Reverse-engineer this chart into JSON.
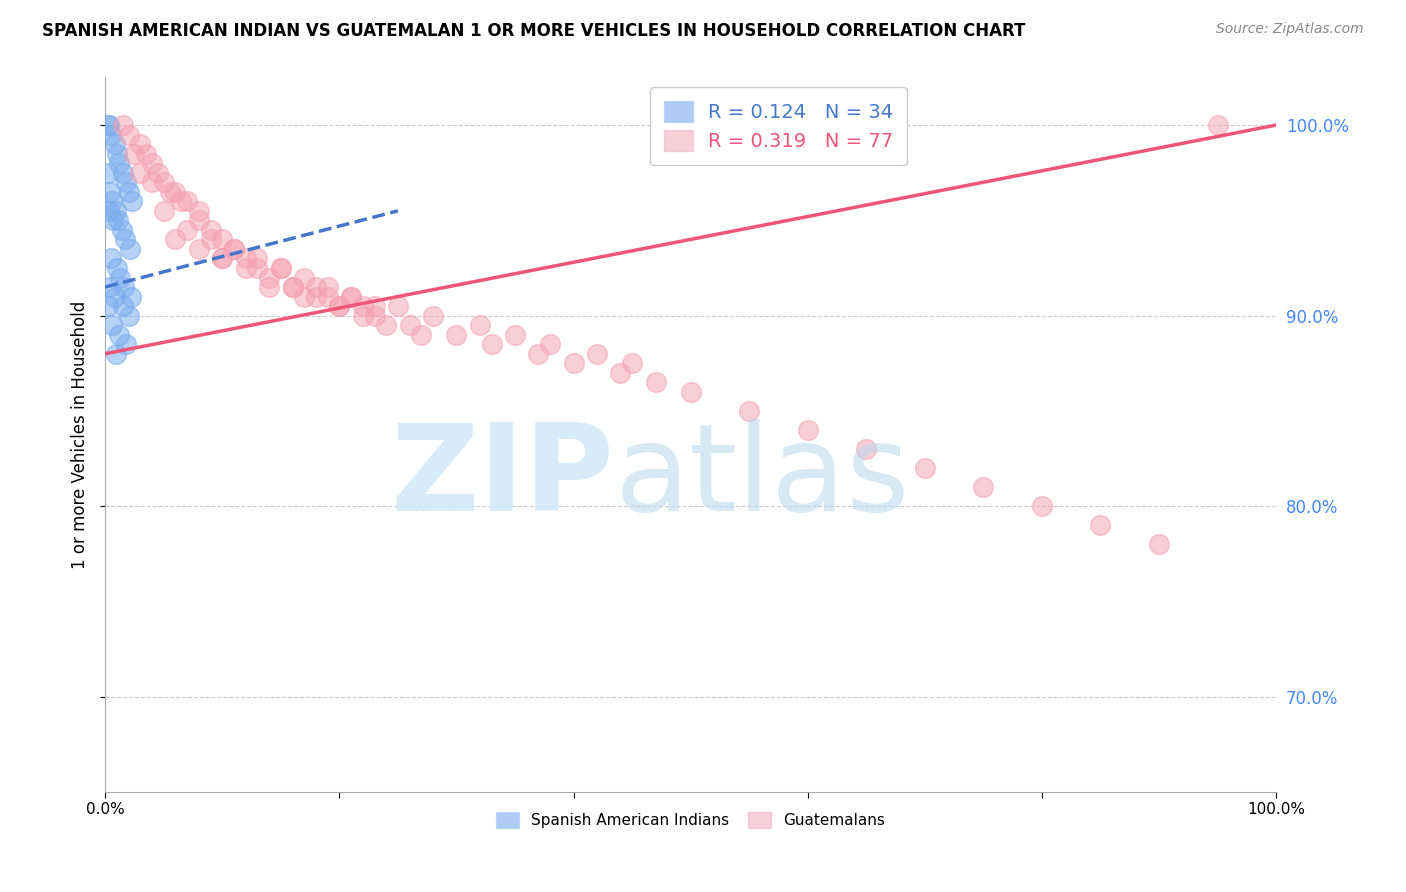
{
  "title": "SPANISH AMERICAN INDIAN VS GUATEMALAN 1 OR MORE VEHICLES IN HOUSEHOLD CORRELATION CHART",
  "source": "Source: ZipAtlas.com",
  "ylabel": "1 or more Vehicles in Household",
  "blue_R": 0.124,
  "blue_N": 34,
  "pink_R": 0.319,
  "pink_N": 77,
  "blue_scatter_x": [
    0.2,
    0.3,
    0.5,
    0.8,
    1.0,
    1.2,
    1.5,
    1.8,
    2.0,
    2.3,
    0.2,
    0.4,
    0.6,
    0.9,
    1.1,
    1.4,
    1.7,
    2.1,
    0.3,
    0.7,
    0.5,
    1.0,
    1.3,
    1.6,
    2.2,
    0.4,
    0.8,
    1.5,
    2.0,
    0.2,
    0.6,
    1.2,
    1.8,
    0.9
  ],
  "blue_scatter_y": [
    100.0,
    100.0,
    99.5,
    99.0,
    98.5,
    98.0,
    97.5,
    97.0,
    96.5,
    96.0,
    97.5,
    96.5,
    96.0,
    95.5,
    95.0,
    94.5,
    94.0,
    93.5,
    95.5,
    95.0,
    93.0,
    92.5,
    92.0,
    91.5,
    91.0,
    91.5,
    91.0,
    90.5,
    90.0,
    90.5,
    89.5,
    89.0,
    88.5,
    88.0
  ],
  "pink_scatter_x": [
    1.5,
    2.0,
    3.0,
    3.5,
    4.0,
    4.5,
    5.0,
    6.0,
    7.0,
    8.0,
    2.5,
    3.0,
    4.0,
    5.5,
    6.5,
    8.0,
    9.0,
    10.0,
    11.0,
    12.0,
    5.0,
    7.0,
    9.0,
    11.0,
    13.0,
    15.0,
    17.0,
    19.0,
    21.0,
    23.0,
    6.0,
    8.0,
    10.0,
    12.0,
    14.0,
    16.0,
    18.0,
    20.0,
    22.0,
    24.0,
    15.0,
    18.0,
    21.0,
    25.0,
    28.0,
    32.0,
    35.0,
    38.0,
    42.0,
    45.0,
    14.0,
    17.0,
    20.0,
    23.0,
    26.0,
    30.0,
    33.0,
    37.0,
    40.0,
    44.0,
    47.0,
    50.0,
    55.0,
    60.0,
    65.0,
    70.0,
    75.0,
    80.0,
    85.0,
    90.0,
    10.0,
    13.0,
    16.0,
    19.0,
    22.0,
    95.0,
    27.0
  ],
  "pink_scatter_y": [
    100.0,
    99.5,
    99.0,
    98.5,
    98.0,
    97.5,
    97.0,
    96.5,
    96.0,
    95.5,
    98.5,
    97.5,
    97.0,
    96.5,
    96.0,
    95.0,
    94.5,
    94.0,
    93.5,
    93.0,
    95.5,
    94.5,
    94.0,
    93.5,
    93.0,
    92.5,
    92.0,
    91.5,
    91.0,
    90.5,
    94.0,
    93.5,
    93.0,
    92.5,
    92.0,
    91.5,
    91.0,
    90.5,
    90.0,
    89.5,
    92.5,
    91.5,
    91.0,
    90.5,
    90.0,
    89.5,
    89.0,
    88.5,
    88.0,
    87.5,
    91.5,
    91.0,
    90.5,
    90.0,
    89.5,
    89.0,
    88.5,
    88.0,
    87.5,
    87.0,
    86.5,
    86.0,
    85.0,
    84.0,
    83.0,
    82.0,
    81.0,
    80.0,
    79.0,
    78.0,
    93.0,
    92.5,
    91.5,
    91.0,
    90.5,
    100.0,
    89.0
  ],
  "blue_line_x0": 0.0,
  "blue_line_x1": 25.0,
  "blue_line_y0": 91.5,
  "blue_line_y1": 95.5,
  "pink_line_x0": 0.0,
  "pink_line_x1": 100.0,
  "pink_line_y0": 88.0,
  "pink_line_y1": 100.0,
  "bg_color": "#ffffff",
  "blue_color": "#7aadee",
  "pink_color": "#f4a0b0",
  "blue_line_color": "#4477cc",
  "pink_line_color": "#ee5577",
  "ylim_min": 65.0,
  "ylim_max": 102.5,
  "xlim_min": 0.0,
  "xlim_max": 100.0,
  "right_yticks": [
    70.0,
    80.0,
    90.0,
    100.0
  ],
  "right_yticklabels": [
    "70.0%",
    "80.0%",
    "90.0%",
    "100.0%"
  ],
  "xtick_positions": [
    0,
    20,
    40,
    60,
    80,
    100
  ],
  "xtick_labels": [
    "0.0%",
    "",
    "",
    "",
    "",
    "100.0%"
  ],
  "watermark_zip": "ZIP",
  "watermark_atlas": "atlas"
}
